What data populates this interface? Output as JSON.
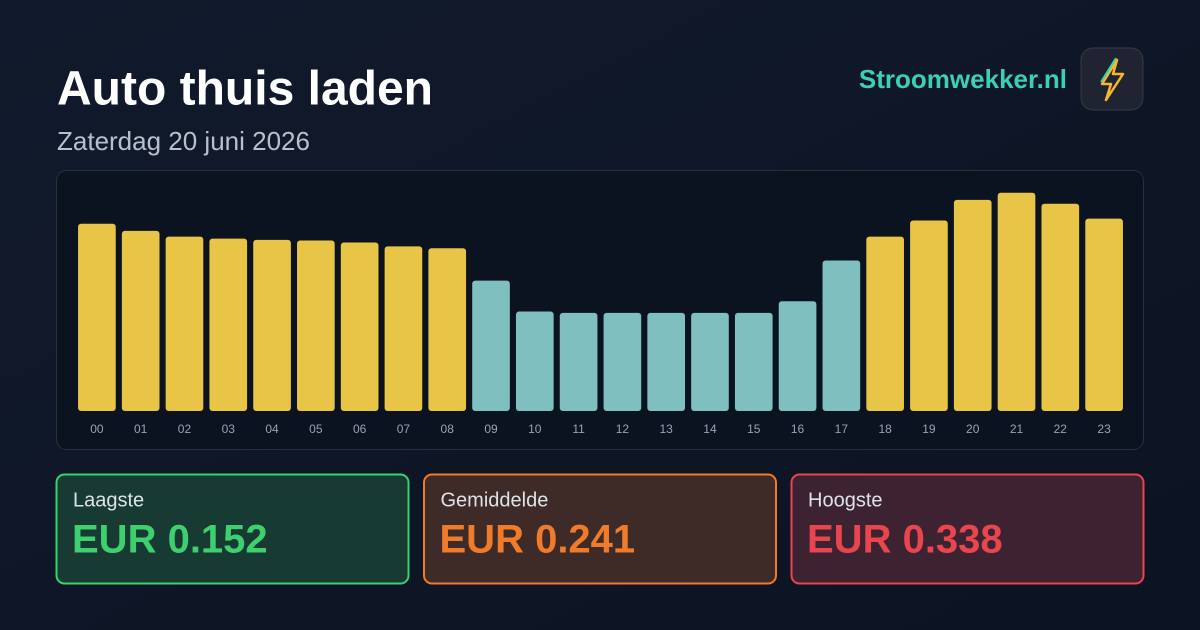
{
  "header": {
    "title": "Auto thuis laden",
    "subtitle": "Zaterdag 20 juni 2026",
    "brand": "Stroomwekker.nl"
  },
  "chart_data": {
    "type": "bar",
    "categories": [
      "00",
      "01",
      "02",
      "03",
      "04",
      "05",
      "06",
      "07",
      "08",
      "09",
      "10",
      "11",
      "12",
      "13",
      "14",
      "15",
      "16",
      "17",
      "18",
      "19",
      "20",
      "21",
      "22",
      "23"
    ],
    "values": [
      0.29,
      0.279,
      0.27,
      0.267,
      0.265,
      0.264,
      0.261,
      0.255,
      0.252,
      0.202,
      0.154,
      0.152,
      0.152,
      0.152,
      0.152,
      0.152,
      0.17,
      0.233,
      0.27,
      0.295,
      0.327,
      0.338,
      0.321,
      0.298
    ],
    "colors": [
      "#e8c547",
      "#e8c547",
      "#e8c547",
      "#e8c547",
      "#e8c547",
      "#e8c547",
      "#e8c547",
      "#e8c547",
      "#e8c547",
      "#7fbfbf",
      "#7fbfbf",
      "#7fbfbf",
      "#7fbfbf",
      "#7fbfbf",
      "#7fbfbf",
      "#7fbfbf",
      "#7fbfbf",
      "#7fbfbf",
      "#e8c547",
      "#e8c547",
      "#e8c547",
      "#e8c547",
      "#e8c547",
      "#e8c547"
    ],
    "ylim": [
      0,
      0.35
    ]
  },
  "cards": [
    {
      "label": "Laagste",
      "value": "EUR 0.152",
      "color": "#3ecf6e",
      "background": "#173a33"
    },
    {
      "label": "Gemiddelde",
      "value": "EUR 0.241",
      "color": "#f07b2a",
      "background": "#3e2a27"
    },
    {
      "label": "Hoogste",
      "value": "EUR 0.338",
      "color": "#e8454f",
      "background": "#3d2331"
    }
  ]
}
